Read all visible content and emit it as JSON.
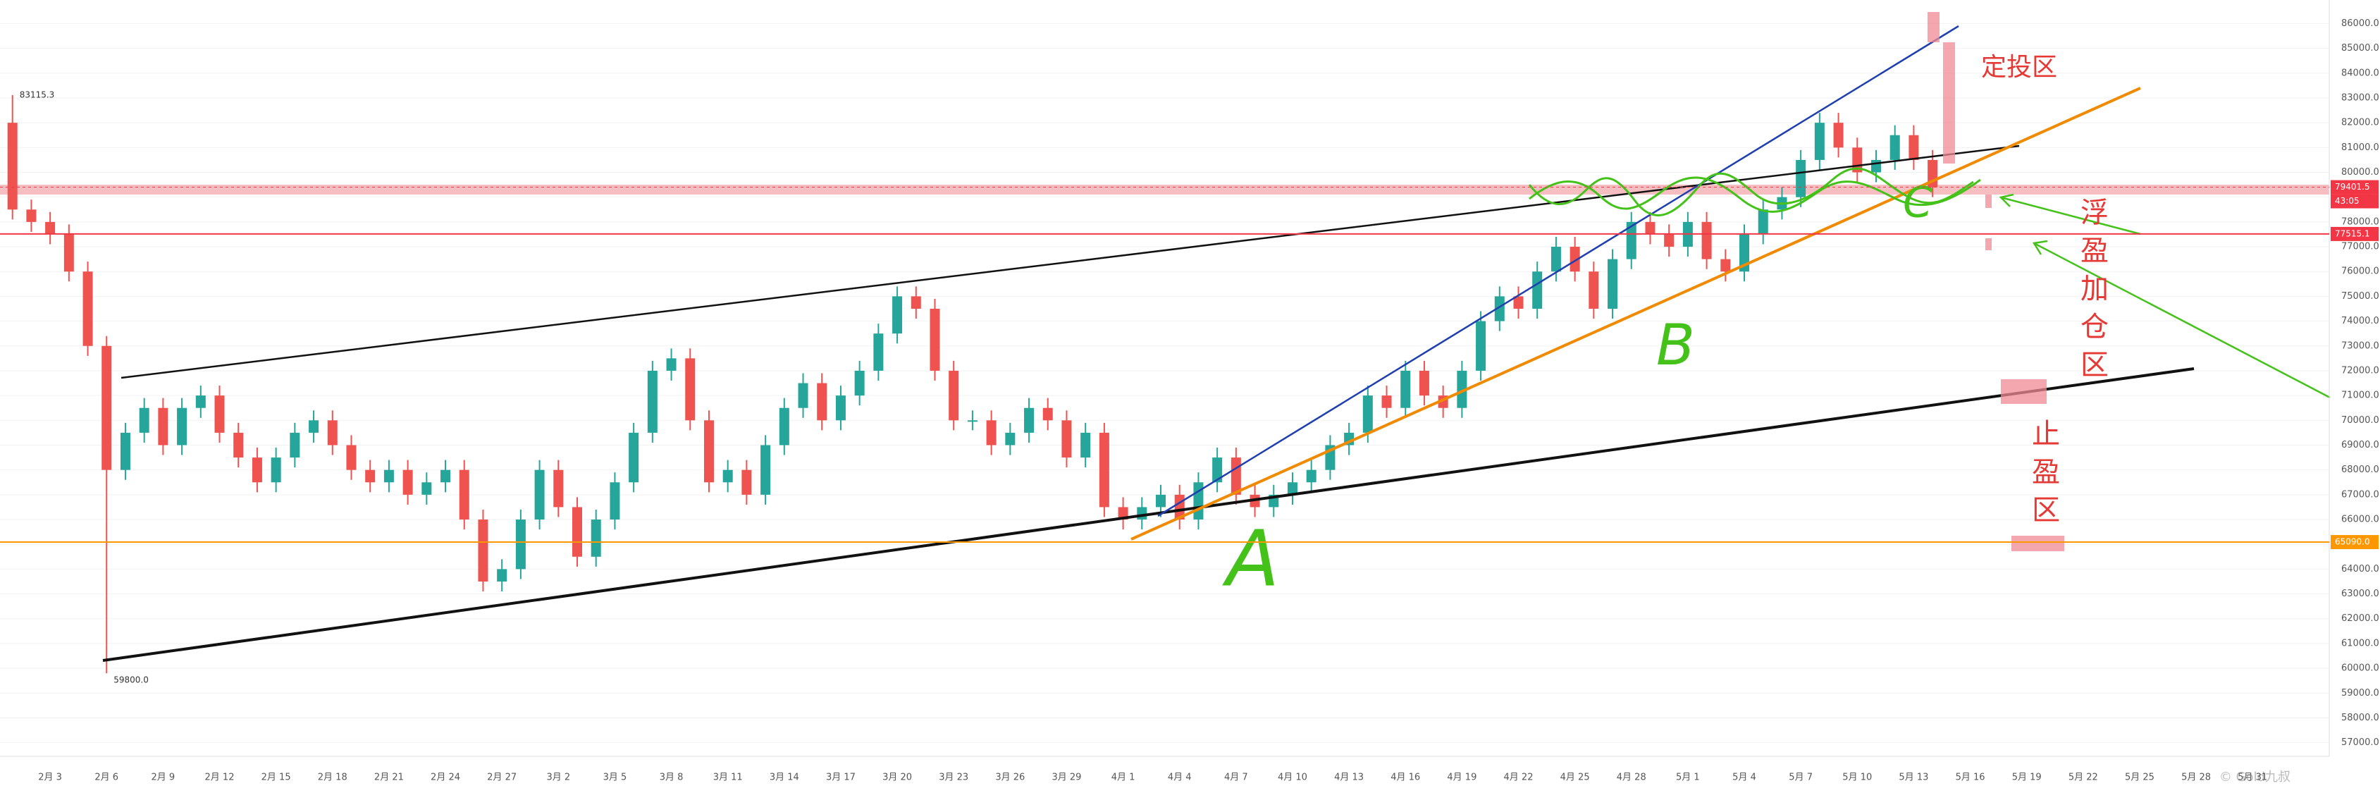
{
  "chart_data": {
    "type": "candlestick",
    "categories": [
      null,
      null,
      "2月 3",
      null,
      null,
      "2月 6",
      null,
      null,
      "2月 9",
      null,
      null,
      "2月 12",
      null,
      null,
      "2月 15",
      null,
      null,
      "2月 18",
      null,
      null,
      "2月 21",
      null,
      null,
      "2月 24",
      null,
      null,
      "2月 27",
      null,
      null,
      "3月 2",
      null,
      null,
      "3月 5",
      null,
      null,
      "3月 8",
      null,
      null,
      "3月 11",
      null,
      null,
      "3月 14",
      null,
      null,
      "3月 17",
      null,
      null,
      "3月 20",
      null,
      null,
      "3月 23",
      null,
      null,
      "3月 26",
      null,
      null,
      "3月 29",
      null,
      null,
      "4月 1",
      null,
      null,
      "4月 4",
      null,
      null,
      "4月 7",
      null,
      null,
      "4月 10",
      null,
      null,
      "4月 13",
      null,
      null,
      "4月 16",
      null,
      null,
      "4月 19",
      null,
      null,
      "4月 22",
      null,
      null,
      "4月 25",
      null,
      null,
      "4月 28",
      null,
      null,
      "5月 1",
      null,
      null,
      "5月 4",
      null,
      null,
      "5月 7",
      null,
      null,
      "5月 10",
      null,
      null,
      "5月 13",
      null,
      null,
      "5月 16",
      null,
      null,
      "5月 19",
      null,
      null,
      "5月 22",
      null,
      null,
      "5月 25",
      null,
      null,
      "5月 28",
      null,
      null,
      "5月 31"
    ],
    "open": [
      82000,
      78500,
      78000,
      77500,
      76000,
      73000,
      68000,
      69500,
      70500,
      69000,
      70500,
      71000,
      69500,
      68500,
      67500,
      68500,
      69500,
      70000,
      69000,
      68000,
      67500,
      68000,
      67000,
      67500,
      68000,
      66000,
      63500,
      64000,
      66000,
      68000,
      66500,
      64500,
      66000,
      67500,
      69500,
      72000,
      72500,
      70000,
      67500,
      68000,
      67000,
      69000,
      70500,
      71500,
      70000,
      71000,
      72000,
      73500,
      75000,
      74500,
      72000,
      70000,
      70000,
      69000,
      69500,
      70500,
      70000,
      68500,
      69500,
      66500,
      66000,
      66500,
      67000,
      66000,
      67500,
      68500,
      67000,
      66500,
      67000,
      67500,
      68000,
      69000,
      69500,
      71000,
      70500,
      72000,
      71000,
      70500,
      72000,
      74000,
      75000,
      74500,
      76000,
      77000,
      76000,
      74500,
      76500,
      78000,
      77500,
      77000,
      78000,
      76500,
      76000,
      77500,
      78500,
      79000,
      80500,
      82000,
      81000,
      80000,
      80500,
      81500,
      80500,
      null,
      null,
      null,
      null,
      null,
      null,
      null,
      null,
      null,
      null,
      null,
      null,
      null,
      null,
      null,
      null,
      null
    ],
    "high": [
      83115.3,
      78900,
      78400,
      77900,
      76400,
      73400,
      69900,
      70900,
      70900,
      70900,
      71400,
      71400,
      69900,
      68900,
      68900,
      69900,
      70400,
      70400,
      69400,
      68400,
      68400,
      68400,
      67900,
      68400,
      68400,
      66400,
      64400,
      66400,
      68400,
      68400,
      66900,
      66400,
      67900,
      69900,
      72400,
      72900,
      72900,
      70400,
      68400,
      68400,
      69400,
      70900,
      71900,
      71900,
      71400,
      72400,
      73900,
      75400,
      75400,
      74900,
      72400,
      70400,
      70400,
      69900,
      70900,
      70900,
      70400,
      69900,
      69900,
      66900,
      66900,
      67400,
      67400,
      67900,
      68900,
      68900,
      67400,
      67400,
      67900,
      68400,
      69400,
      69900,
      71400,
      71400,
      72400,
      72400,
      71400,
      72400,
      74400,
      75400,
      75400,
      76400,
      77400,
      77400,
      76400,
      76900,
      78400,
      78400,
      77900,
      78400,
      78400,
      76900,
      77900,
      78900,
      79400,
      80900,
      82400,
      82400,
      81400,
      80900,
      81900,
      81900,
      80900,
      null,
      null,
      null,
      null,
      null,
      null,
      null,
      null,
      null,
      null,
      null,
      null,
      null,
      null,
      null,
      null,
      null
    ],
    "low": [
      78100,
      77600,
      77100,
      75600,
      72600,
      59800,
      67600,
      69100,
      68600,
      68600,
      70100,
      69100,
      68100,
      67100,
      67100,
      68100,
      69100,
      68600,
      67600,
      67100,
      67100,
      66600,
      66600,
      67100,
      65600,
      63100,
      63100,
      63600,
      65600,
      66100,
      64100,
      64100,
      65600,
      67100,
      69100,
      71600,
      69600,
      67100,
      67100,
      66600,
      66600,
      68600,
      70100,
      69600,
      69600,
      70600,
      71600,
      73100,
      74100,
      71600,
      69600,
      69600,
      68600,
      68600,
      69100,
      69600,
      68100,
      68100,
      66100,
      65600,
      65600,
      66100,
      65600,
      65600,
      67100,
      66600,
      66100,
      66100,
      66600,
      67100,
      67600,
      68600,
      69100,
      70100,
      70100,
      70600,
      70100,
      70100,
      71600,
      73600,
      74100,
      74100,
      75600,
      75600,
      74100,
      74100,
      76100,
      77100,
      76600,
      76600,
      76100,
      75600,
      75600,
      77100,
      78100,
      78600,
      80100,
      80600,
      79600,
      79600,
      80100,
      80100,
      79001.5,
      null,
      null,
      null,
      null,
      null,
      null,
      null,
      null,
      null,
      null,
      null,
      null,
      null,
      null,
      null,
      null,
      null
    ],
    "close": [
      78500,
      78000,
      77500,
      76000,
      73000,
      68000,
      69500,
      70500,
      69000,
      70500,
      71000,
      69500,
      68500,
      67500,
      68500,
      69500,
      70000,
      69000,
      68000,
      67500,
      68000,
      67000,
      67500,
      68000,
      66000,
      63500,
      64000,
      66000,
      68000,
      66500,
      64500,
      66000,
      67500,
      69500,
      72000,
      72500,
      70000,
      67500,
      68000,
      67000,
      69000,
      70500,
      71500,
      70000,
      71000,
      72000,
      73500,
      75000,
      74500,
      72000,
      70000,
      70000,
      69000,
      69500,
      70500,
      70000,
      68500,
      69500,
      66500,
      66000,
      66500,
      67000,
      66000,
      67500,
      68500,
      67000,
      66500,
      67000,
      67500,
      68000,
      69000,
      69500,
      71000,
      70500,
      72000,
      71000,
      70500,
      72000,
      74000,
      75000,
      74500,
      76000,
      77000,
      76000,
      74500,
      76500,
      78000,
      77500,
      77000,
      78000,
      76500,
      76000,
      77500,
      78500,
      79000,
      80500,
      82000,
      81000,
      80000,
      80500,
      81500,
      80500,
      79401.5,
      null,
      null,
      null,
      null,
      null,
      null,
      null,
      null,
      null,
      null,
      null,
      null,
      null,
      null,
      null,
      null,
      null
    ],
    "up_color": "#26a69a",
    "down_color": "#ef5350",
    "low_label": "59800.0",
    "ylim": [
      56450,
      86950
    ],
    "yticks": [
      {
        "value": 57000,
        "label": "57000.0"
      },
      {
        "value": 58000,
        "label": "58000.0"
      },
      {
        "value": 59000,
        "label": "59000.0"
      },
      {
        "value": 60000,
        "label": "60000.0"
      },
      {
        "value": 61000,
        "label": "61000.0"
      },
      {
        "value": 62000,
        "label": "62000.0"
      },
      {
        "value": 63000,
        "label": "63000.0"
      },
      {
        "value": 64000,
        "label": "64000.0"
      },
      {
        "value": 65000,
        "label": "65000.0"
      },
      {
        "value": 66000,
        "label": "66000.0"
      },
      {
        "value": 67000,
        "label": "67000.0"
      },
      {
        "value": 68000,
        "label": "68000.0"
      },
      {
        "value": 69000,
        "label": "69000.0"
      },
      {
        "value": 70000,
        "label": "70000.0"
      },
      {
        "value": 71000,
        "label": "71000.0"
      },
      {
        "value": 72000,
        "label": "72000.0"
      },
      {
        "value": 73000,
        "label": "73000.0"
      },
      {
        "value": 74000,
        "label": "74000.0"
      },
      {
        "value": 75000,
        "label": "75000.0"
      },
      {
        "value": 76000,
        "label": "76000.0"
      },
      {
        "value": 77000,
        "label": "77000.0"
      },
      {
        "value": 78000,
        "label": "78000.0"
      },
      {
        "value": 79000,
        "label": "79000.0"
      },
      {
        "value": 80000,
        "label": "80000.0"
      },
      {
        "value": 81000,
        "label": "81000.0"
      },
      {
        "value": 82000,
        "label": "82000.0"
      },
      {
        "value": 83000,
        "label": "83000.0"
      },
      {
        "value": 84000,
        "label": "84000.0"
      },
      {
        "value": 85000,
        "label": "85000.0"
      },
      {
        "value": 86000,
        "label": "86000.0"
      }
    ],
    "grid": true,
    "price_tags": [
      {
        "value": 79401.5,
        "color": "#f23645",
        "line": false
      },
      {
        "value": 77515.1,
        "color": "#f23645",
        "line": true
      },
      {
        "value": {
          "value": 65090,
          "label": "65090.0"
        },
        "color": "#ff9800",
        "line": true
      }
    ],
    "countdown": "43:05",
    "annotations": {
      "dingtou": "定投区",
      "fuying": "浮盈加仓区",
      "zhiying": "止盈区",
      "a": "A",
      "b": "B",
      "c": "C"
    },
    "watermark": "© Gold九叔"
  }
}
